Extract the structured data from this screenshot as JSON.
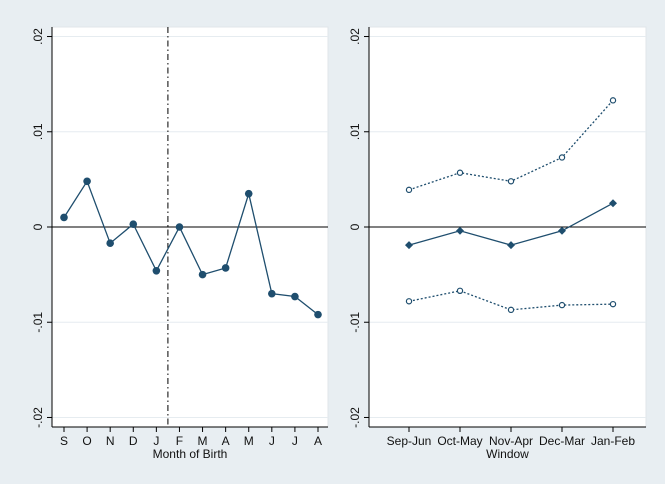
{
  "colors": {
    "outer_background": "#e8eef2",
    "plot_background": "#ffffff",
    "grid": "#e6ecf0",
    "series": "#1f4e6e",
    "axis": "#000000"
  },
  "chart_data": [
    {
      "type": "line",
      "xlabel": "Month of Birth",
      "ylabel": "",
      "ylim": [
        -0.021,
        0.021
      ],
      "yticks": [
        0.02,
        0.01,
        0,
        -0.01,
        -0.02
      ],
      "ytick_labels": [
        ".02",
        ".01",
        "0",
        "-.01",
        "-.02"
      ],
      "grid": true,
      "reference_line_y": 0,
      "vertical_reference_after_category": "J",
      "categories": [
        "S",
        "O",
        "N",
        "D",
        "J",
        "F",
        "M",
        "A",
        "M",
        "J",
        "J",
        "A"
      ],
      "series": [
        {
          "values": [
            0.001,
            0.0048,
            -0.0017,
            0.0003,
            -0.0046,
            0.0,
            -0.005,
            -0.0043,
            0.0035,
            -0.007,
            -0.0073,
            -0.0092
          ]
        }
      ]
    },
    {
      "type": "line",
      "xlabel": "Window",
      "ylabel": "",
      "ylim": [
        -0.021,
        0.021
      ],
      "yticks": [
        0.02,
        0.01,
        0,
        -0.01,
        -0.02
      ],
      "ytick_labels": [
        ".02",
        ".01",
        "0",
        "-.01",
        "-.02"
      ],
      "grid": true,
      "reference_line_y": 0,
      "categories": [
        "Sep-Jun",
        "Oct-May",
        "Nov-Apr",
        "Dec-Mar",
        "Jan-Feb"
      ],
      "series": [
        {
          "style": "dotted-hollow-circle",
          "values": [
            0.0039,
            0.0057,
            0.0048,
            0.0073,
            0.0133
          ]
        },
        {
          "style": "solid-diamond",
          "values": [
            -0.0019,
            -0.0004,
            -0.0019,
            -0.0004,
            0.0025
          ]
        },
        {
          "style": "dotted-hollow-circle",
          "values": [
            -0.0078,
            -0.0067,
            -0.0087,
            -0.0082,
            -0.0081
          ]
        }
      ]
    }
  ]
}
